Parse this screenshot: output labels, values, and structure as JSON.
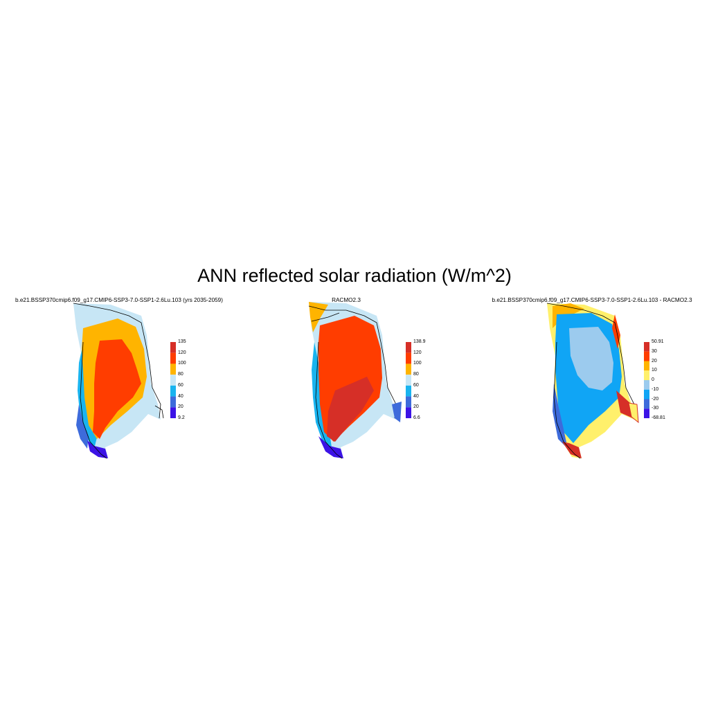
{
  "title": "ANN reflected solar radiation (W/m^2)",
  "panels": [
    {
      "title": "b.e21.BSSP370cmip6.f09_g17.CMIP6-SSP3-7.0-SSP1-2.6Lu.103 (yrs 2035-2059)",
      "colorbar": {
        "labels": [
          "135",
          "120",
          "100",
          "80",
          "60",
          "40",
          "20",
          "9.2"
        ],
        "colors": [
          "#d62f27",
          "#ff3d00",
          "#ffb400",
          "#c7e6f5",
          "#19b4ef",
          "#3d6bdb",
          "#3c13e6"
        ]
      }
    },
    {
      "title": "RACMO2.3",
      "colorbar": {
        "labels": [
          "138.9",
          "120",
          "100",
          "80",
          "60",
          "40",
          "20",
          "6.6"
        ],
        "colors": [
          "#d62f27",
          "#ff3d00",
          "#ffb400",
          "#c7e6f5",
          "#19b4ef",
          "#3d6bdb",
          "#3c13e6"
        ]
      }
    },
    {
      "title": "b.e21.BSSP370cmip6.f09_g17.CMIP6-SSP3-7.0-SSP1-2.6Lu.103 - RACMO2.3",
      "colorbar": {
        "labels": [
          "50.91",
          "30",
          "20",
          "10",
          "0",
          "-10",
          "-20",
          "-30",
          "-68.81"
        ],
        "colors": [
          "#d62f27",
          "#ff3d00",
          "#ffb400",
          "#fff06b",
          "#9ccbee",
          "#10a5f5",
          "#3d6bdb",
          "#3c13e6"
        ]
      }
    }
  ]
}
